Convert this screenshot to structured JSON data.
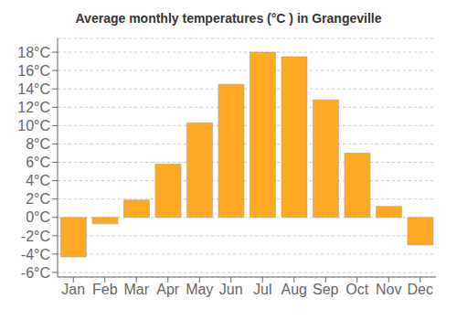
{
  "chart_data": {
    "type": "bar",
    "title": "Average monthly temperatures (°C ) in Grangeville",
    "categories": [
      "Jan",
      "Feb",
      "Mar",
      "Apr",
      "May",
      "Jun",
      "Jul",
      "Aug",
      "Sep",
      "Oct",
      "Nov",
      "Dec"
    ],
    "values": [
      -4.3,
      -0.7,
      1.9,
      5.8,
      10.3,
      14.5,
      18.0,
      17.5,
      12.8,
      7.0,
      1.2,
      -3.0
    ],
    "color": "#FFA824",
    "ylim": [
      -6.5,
      19.5
    ],
    "yticks": [
      {
        "value": -6,
        "label": "-6°C"
      },
      {
        "value": -4,
        "label": "-4°C"
      },
      {
        "value": -2,
        "label": "-2°C"
      },
      {
        "value": 0,
        "label": "0°C"
      },
      {
        "value": 2,
        "label": "2°C"
      },
      {
        "value": 4,
        "label": "4°C"
      },
      {
        "value": 6,
        "label": "6°C"
      },
      {
        "value": 8,
        "label": "8°C"
      },
      {
        "value": 10,
        "label": "10°C"
      },
      {
        "value": 12,
        "label": "12°C"
      },
      {
        "value": 14,
        "label": "14°C"
      },
      {
        "value": 16,
        "label": "16°C"
      },
      {
        "value": 18,
        "label": "18°C"
      }
    ],
    "grid": true
  }
}
